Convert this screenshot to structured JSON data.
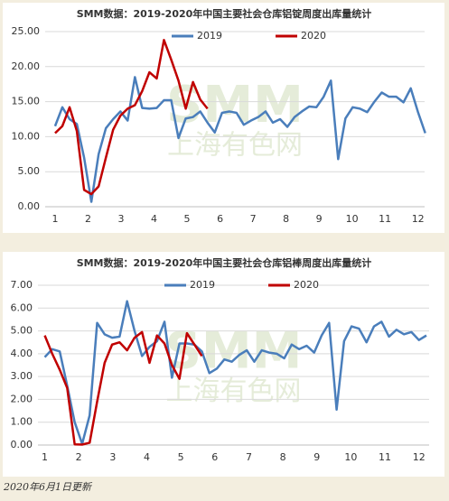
{
  "chart_data": [
    {
      "type": "line",
      "title": "SMM数据：2019-2020年中国主要社会仓库铝锭周度出库量统计",
      "watermark": [
        "SMM",
        "上海有色网"
      ],
      "x": [
        1.0,
        1.22,
        1.44,
        1.66,
        1.88,
        2.1,
        2.32,
        2.54,
        2.76,
        2.98,
        3.2,
        3.42,
        3.64,
        3.86,
        4.08,
        4.3,
        4.52,
        4.74,
        4.96,
        5.18,
        5.4,
        5.62,
        5.84,
        6.06,
        6.28,
        6.5,
        6.72,
        6.94,
        7.16,
        7.38,
        7.6,
        7.82,
        8.04,
        8.26,
        8.48,
        8.7,
        8.92,
        9.14,
        9.36,
        9.58,
        9.8,
        10.02,
        10.24,
        10.46,
        10.68,
        10.9,
        11.12,
        11.34,
        11.56,
        11.78,
        12.0,
        12.22
      ],
      "series": [
        {
          "name": "2019",
          "color": "#4a7ebb",
          "values": [
            11.5,
            14.2,
            12.5,
            11.8,
            7,
            0.7,
            7.5,
            11.2,
            12.5,
            13.6,
            12.3,
            18.5,
            14.1,
            14,
            14.1,
            15.2,
            15.2,
            9.8,
            12.6,
            12.8,
            13.6,
            12,
            10.6,
            13.4,
            13.6,
            13.4,
            11.7,
            12.3,
            12.8,
            13.6,
            12,
            12.5,
            11.4,
            12.8,
            13.6,
            14.3,
            14.2,
            15.7,
            18,
            6.8,
            12.6,
            14.2,
            14,
            13.5,
            15,
            16.3,
            15.7,
            15.7,
            14.9,
            16.9,
            13.5,
            10.5
          ]
        },
        {
          "name": "2020",
          "color": "#c00000",
          "values": [
            10.5,
            11.5,
            14.2,
            10.8,
            2.4,
            1.8,
            2.9,
            7,
            11,
            13,
            14,
            14.5,
            16.5,
            19.2,
            18.3,
            23.8,
            21,
            18,
            14,
            17.8,
            15.3,
            14,
            null,
            null,
            null,
            null,
            null,
            null,
            null,
            null,
            null,
            null,
            null,
            null,
            null,
            null,
            null,
            null,
            null,
            null,
            null,
            null,
            null,
            null,
            null,
            null,
            null,
            null,
            null,
            null,
            null,
            null
          ]
        }
      ],
      "xlim": [
        0.7,
        12.2
      ],
      "xticks": [
        1,
        2,
        3,
        4,
        5,
        6,
        7,
        8,
        9,
        10,
        11,
        12
      ],
      "ylim": [
        0,
        25
      ],
      "yticks": [
        {
          "value": 0,
          "label": "0.00"
        },
        {
          "value": 5,
          "label": "5.00"
        },
        {
          "value": 10,
          "label": "10.00"
        },
        {
          "value": 15,
          "label": "15.00"
        },
        {
          "value": 20,
          "label": "20.00"
        },
        {
          "value": 25,
          "label": "25.00"
        }
      ],
      "grid": true,
      "legend": "top"
    },
    {
      "type": "line",
      "title": "SMM数据：2019-2020年中国主要社会仓库铝棒周度出库量统计",
      "watermark": [
        "SMM",
        "上海有色网"
      ],
      "x": [
        1.0,
        1.22,
        1.44,
        1.66,
        1.88,
        2.1,
        2.32,
        2.54,
        2.76,
        2.98,
        3.2,
        3.42,
        3.64,
        3.86,
        4.08,
        4.3,
        4.52,
        4.74,
        4.96,
        5.18,
        5.4,
        5.62,
        5.84,
        6.06,
        6.28,
        6.5,
        6.72,
        6.94,
        7.16,
        7.38,
        7.6,
        7.82,
        8.04,
        8.26,
        8.48,
        8.7,
        8.92,
        9.14,
        9.36,
        9.58,
        9.8,
        10.02,
        10.24,
        10.46,
        10.68,
        10.9,
        11.12,
        11.34,
        11.56,
        11.78,
        12.0,
        12.22
      ],
      "series": [
        {
          "name": "2019",
          "color": "#4a7ebb",
          "values": [
            3.85,
            4.2,
            4.1,
            2.6,
            1.0,
            0.05,
            1.3,
            5.35,
            4.85,
            4.7,
            4.75,
            6.3,
            5,
            3.9,
            4.3,
            4.55,
            5.4,
            2.95,
            4.45,
            4.45,
            4.4,
            4.1,
            3.15,
            3.35,
            3.75,
            3.65,
            3.95,
            4.15,
            3.65,
            4.15,
            4.05,
            4,
            3.8,
            4.4,
            4.2,
            4.35,
            4.05,
            4.8,
            5.35,
            1.55,
            4.55,
            5.2,
            5.1,
            4.5,
            5.2,
            5.4,
            4.75,
            5.05,
            4.85,
            4.95,
            4.6,
            4.8
          ]
        },
        {
          "name": "2020",
          "color": "#c00000",
          "values": [
            4.8,
            4.0,
            3.3,
            2.5,
            0.03,
            0.02,
            0.1,
            1.9,
            3.6,
            4.4,
            4.5,
            4.15,
            4.7,
            4.95,
            3.6,
            4.8,
            4.45,
            3.5,
            2.9,
            4.9,
            4.4,
            3.9,
            null,
            null,
            null,
            null,
            null,
            null,
            null,
            null,
            null,
            null,
            null,
            null,
            null,
            null,
            null,
            null,
            null,
            null,
            null,
            null,
            null,
            null,
            null,
            null,
            null,
            null,
            null,
            null,
            null,
            null
          ]
        }
      ],
      "xlim": [
        0.8,
        12.3
      ],
      "xticks": [
        1,
        2,
        3,
        4,
        5,
        6,
        7,
        8,
        9,
        10,
        11,
        12
      ],
      "ylim": [
        0,
        7
      ],
      "yticks": [
        {
          "value": 0,
          "label": "0.00"
        },
        {
          "value": 1,
          "label": "1.00"
        },
        {
          "value": 2,
          "label": "2.00"
        },
        {
          "value": 3,
          "label": "3.00"
        },
        {
          "value": 4,
          "label": "4.00"
        },
        {
          "value": 5,
          "label": "5.00"
        },
        {
          "value": 6,
          "label": "6.00"
        },
        {
          "value": 7,
          "label": "7.00"
        }
      ],
      "grid": true,
      "legend": "top"
    }
  ],
  "footer": "2020年6月1日更新"
}
